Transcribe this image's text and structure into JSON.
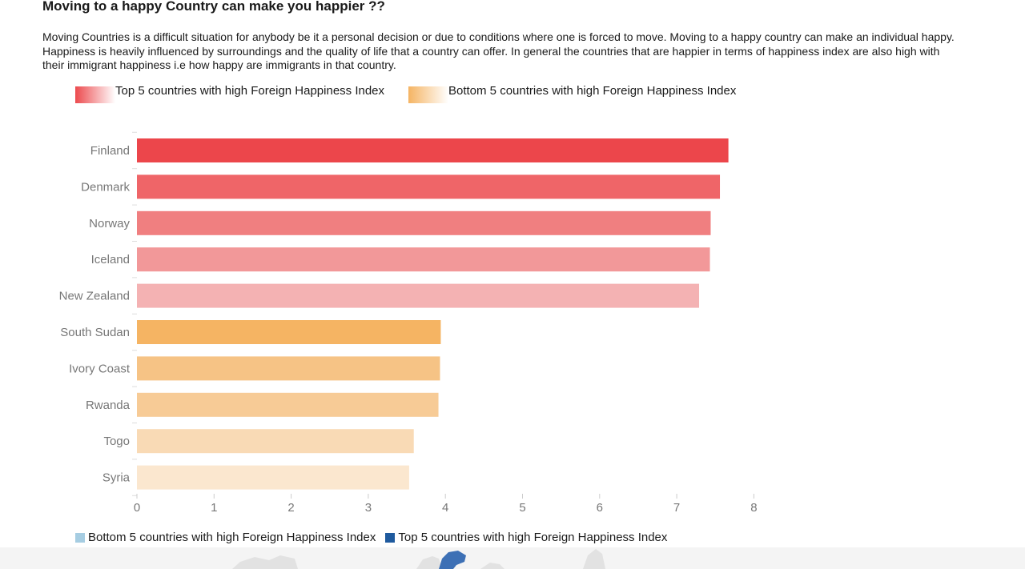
{
  "page": {
    "title": "Moving to a happy Country can make you happier ??",
    "intro": "Moving Countries is a difficult situation for anybody be it a personal decision or due to conditions where one is forced to move. Moving to a happy country can make an individual happy. Happiness is heavily influenced by surroundings and the quality of life that a country can offer. In general the countries that are happier in terms of happiness index are also high with their immigrant happiness i.e how happy are immigrants in that country."
  },
  "legend_top": {
    "top_label": "Top 5 countries with high Foreign Happiness Index",
    "bottom_label": "Bottom 5 countries with high Foreign Happiness Index",
    "top_gradient": [
      "#ec4a4e",
      "#ffffff"
    ],
    "bottom_gradient": [
      "#f5b463",
      "#ffffff"
    ]
  },
  "legend_bottom": {
    "bottom_label": "Bottom 5 countries with high Foreign Happiness Index",
    "top_label": "Top 5 countries with high Foreign Happiness Index",
    "bottom_color": "#a6cde2",
    "top_color": "#1f5a9e"
  },
  "chart_data": {
    "type": "bar",
    "orientation": "horizontal",
    "title": "",
    "xlabel": "",
    "ylabel": "",
    "categories": [
      "Finland",
      "Denmark",
      "Norway",
      "Iceland",
      "New Zealand",
      "South Sudan",
      "Ivory Coast",
      "Rwanda",
      "Togo",
      "Syria"
    ],
    "values": [
      7.67,
      7.56,
      7.44,
      7.43,
      7.29,
      3.94,
      3.93,
      3.91,
      3.59,
      3.53
    ],
    "colors": [
      "#ec464b",
      "#ef6568",
      "#f07f80",
      "#f29899",
      "#f4b2b3",
      "#f5b463",
      "#f6c385",
      "#f7cb96",
      "#f9dab5",
      "#fbe7cf"
    ],
    "xlim": [
      0,
      8
    ],
    "xticks": [
      0,
      1,
      2,
      3,
      4,
      5,
      6,
      7,
      8
    ],
    "grid": false
  }
}
